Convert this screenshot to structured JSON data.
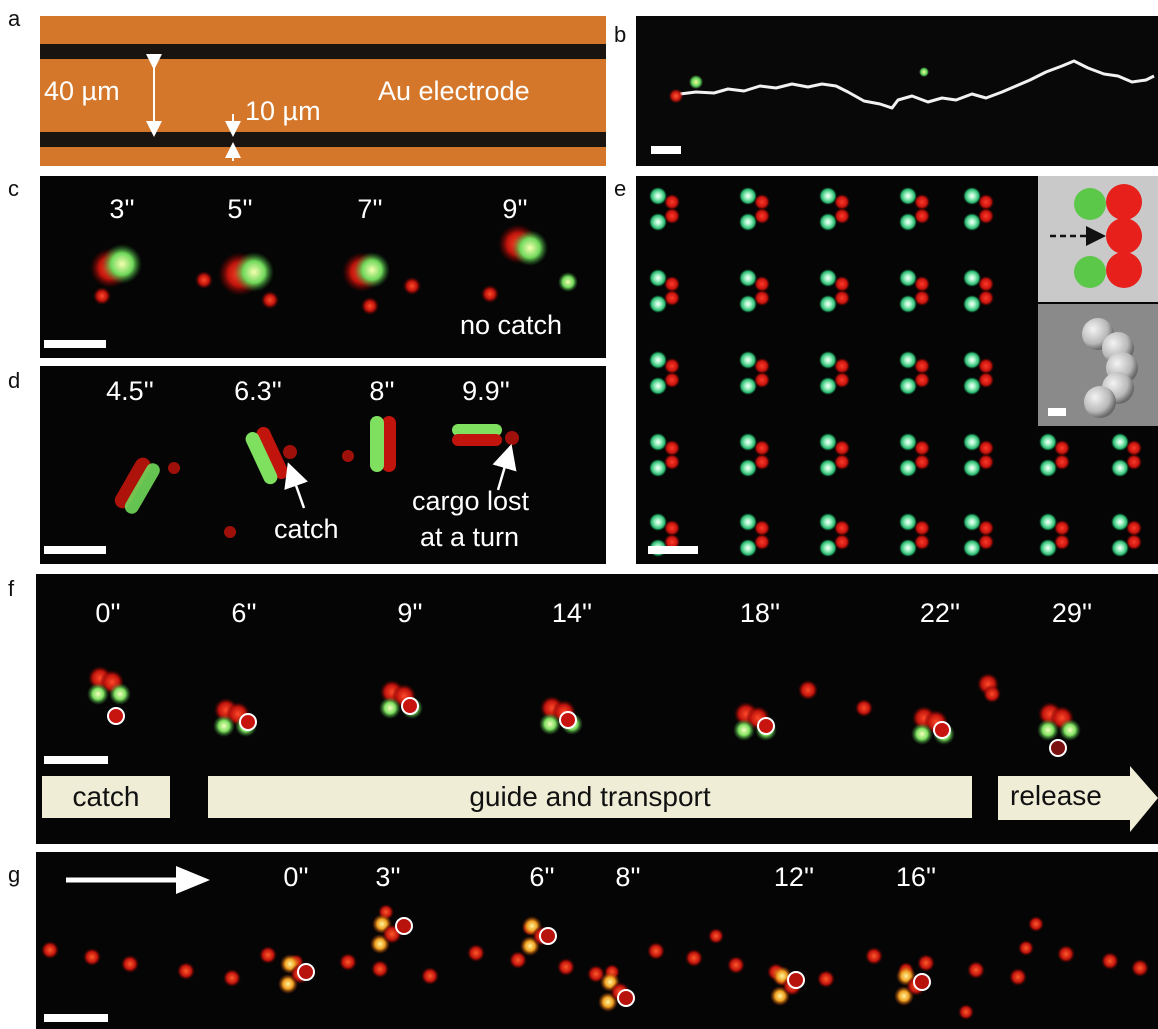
{
  "panel_labels": [
    "a",
    "b",
    "c",
    "d",
    "e",
    "f",
    "g"
  ],
  "panel_a": {
    "width_label": "40 µm",
    "gap_label": "10 µm",
    "electrode_label": "Au electrode",
    "colors": {
      "gold": "#d4772a",
      "stripe": "#1a1410"
    }
  },
  "panel_c": {
    "times": [
      "3''",
      "5''",
      "7''",
      "9''"
    ],
    "note": "no catch"
  },
  "panel_d": {
    "times": [
      "4.5''",
      "6.3''",
      "8''",
      "9.9''"
    ],
    "annotation_catch": "catch",
    "annotation_lost_line1": "cargo lost",
    "annotation_lost_line2": "at a turn"
  },
  "panel_f": {
    "times": [
      "0''",
      "6''",
      "9''",
      "14''",
      "18''",
      "22''",
      "29''"
    ],
    "stage_catch": "catch",
    "stage_transport": "guide and transport",
    "stage_release": "release",
    "banner_color": "#efedd6"
  },
  "panel_g": {
    "times": [
      "0''",
      "3''",
      "6''",
      "8''",
      "12''",
      "16''"
    ]
  },
  "colors": {
    "red_particle": "#e0201c",
    "green_particle": "#5fd35a",
    "background": "#050505"
  }
}
